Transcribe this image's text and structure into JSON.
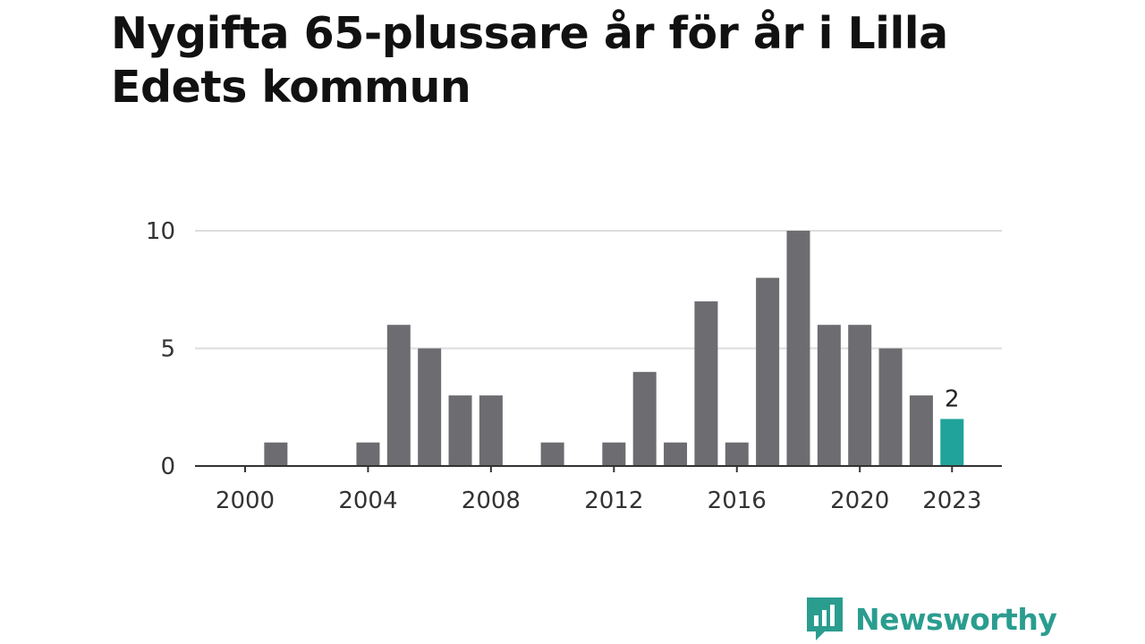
{
  "title": "Nygifta 65-plussare år för år i Lilla Edets kommun",
  "brand": {
    "name": "Newsworthy",
    "icon": "newsworthy-logo-icon"
  },
  "colors": {
    "bar": "#6d6c71",
    "highlight": "#1fa39a",
    "grid": "#dddddd",
    "axis": "#333333",
    "brand": "#2a9d8f"
  },
  "chart_data": {
    "type": "bar",
    "title": "Nygifta 65-plussare år för år i Lilla Edets kommun",
    "xlabel": "",
    "ylabel": "",
    "x": [
      2000,
      2001,
      2002,
      2003,
      2004,
      2005,
      2006,
      2007,
      2008,
      2009,
      2010,
      2011,
      2012,
      2013,
      2014,
      2015,
      2016,
      2017,
      2018,
      2019,
      2020,
      2021,
      2022,
      2023
    ],
    "values": [
      0,
      1,
      0,
      0,
      1,
      6,
      5,
      3,
      3,
      0,
      1,
      0,
      1,
      4,
      1,
      7,
      1,
      8,
      10,
      6,
      6,
      5,
      3,
      2
    ],
    "highlight": {
      "x": 2023,
      "label": "2"
    },
    "ylim": [
      0,
      10
    ],
    "yticks": [
      0,
      5,
      10
    ],
    "xticks": [
      2000,
      2004,
      2008,
      2012,
      2016,
      2020,
      2023
    ],
    "grid": true,
    "legend": "none"
  }
}
